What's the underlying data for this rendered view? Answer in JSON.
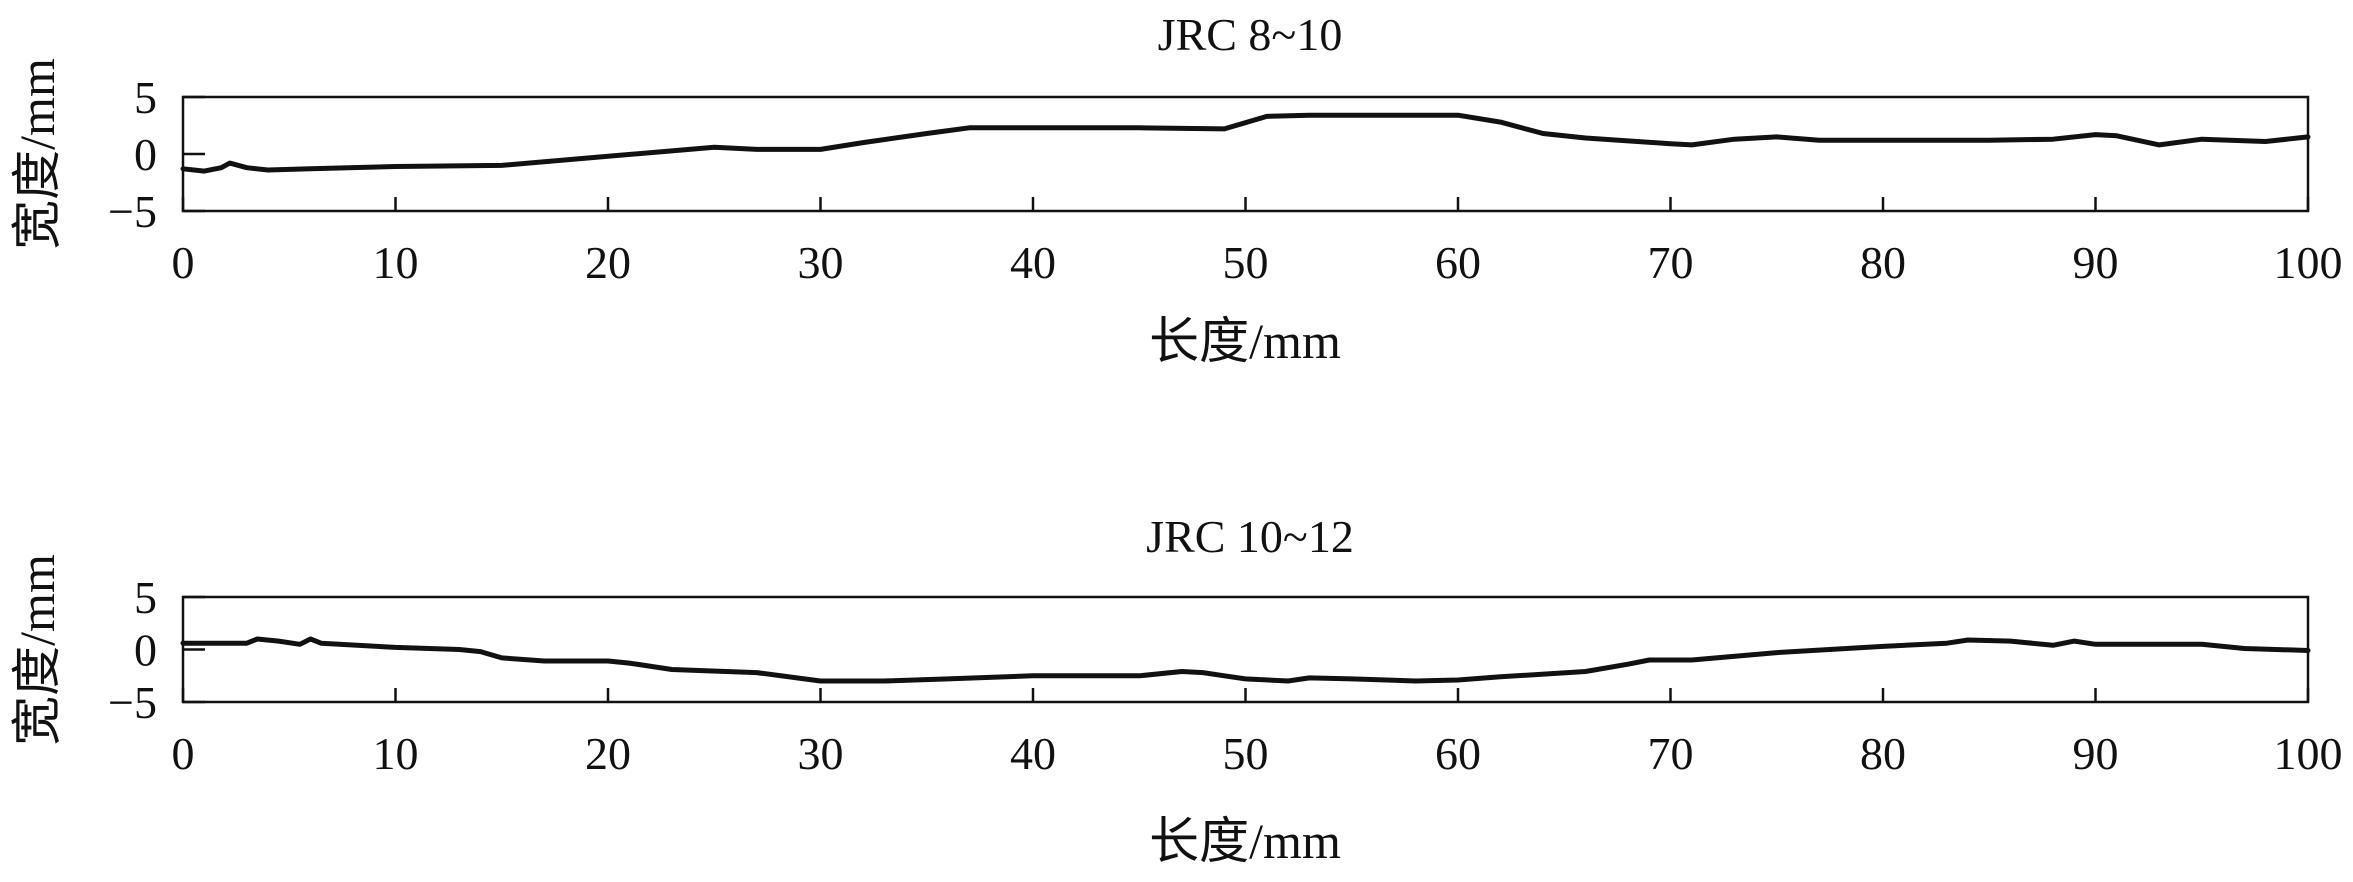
{
  "chart_data": [
    {
      "type": "line",
      "title": "JRC 8~10",
      "xlabel": "长度/mm",
      "ylabel": "宽度/mm",
      "xlim": [
        0,
        100
      ],
      "ylim": [
        -5,
        5
      ],
      "xticks": [
        "0",
        "10",
        "20",
        "30",
        "40",
        "50",
        "60",
        "70",
        "80",
        "90",
        "100"
      ],
      "yticks": [
        "5",
        "0",
        "-5"
      ],
      "grid": false,
      "x": [
        0,
        1,
        1.8,
        2.2,
        3,
        4,
        6,
        10,
        15,
        20,
        25,
        27,
        30,
        32,
        35,
        37,
        40,
        45,
        49,
        51,
        53,
        57,
        60,
        62,
        64,
        66,
        70,
        71,
        73,
        75,
        77,
        80,
        85,
        88,
        90,
        91,
        93,
        95,
        98,
        100
      ],
      "series": [
        {
          "values": [
            -1.3,
            -1.5,
            -1.2,
            -0.8,
            -1.2,
            -1.4,
            -1.3,
            -1.1,
            -1.0,
            -0.2,
            0.6,
            0.4,
            0.4,
            1.0,
            1.8,
            2.3,
            2.3,
            2.3,
            2.2,
            3.3,
            3.4,
            3.4,
            3.4,
            2.8,
            1.8,
            1.4,
            0.9,
            0.8,
            1.3,
            1.5,
            1.2,
            1.2,
            1.2,
            1.3,
            1.7,
            1.6,
            0.8,
            1.3,
            1.1,
            1.5
          ]
        }
      ]
    },
    {
      "type": "line",
      "title": "JRC 10~12",
      "xlabel": "长度/mm",
      "ylabel": "宽度/mm",
      "xlim": [
        0,
        100
      ],
      "ylim": [
        -5,
        5
      ],
      "xticks": [
        "0",
        "10",
        "20",
        "30",
        "40",
        "50",
        "60",
        "70",
        "80",
        "90",
        "100"
      ],
      "yticks": [
        "5",
        "0",
        "-5"
      ],
      "grid": false,
      "x": [
        0,
        3,
        3.5,
        4.5,
        5.5,
        6,
        6.5,
        10,
        13,
        14,
        15,
        17,
        20,
        21,
        23,
        27,
        30,
        33,
        36,
        40,
        45,
        47,
        48,
        49,
        50,
        52,
        53,
        55,
        58,
        60,
        62,
        66,
        68,
        69,
        71,
        75,
        80,
        83,
        84,
        86,
        88,
        89,
        90,
        95,
        97,
        100
      ],
      "series": [
        {
          "values": [
            0.6,
            0.6,
            1.0,
            0.8,
            0.5,
            1.0,
            0.6,
            0.2,
            0.0,
            -0.2,
            -0.8,
            -1.1,
            -1.1,
            -1.3,
            -1.9,
            -2.2,
            -3.0,
            -3.0,
            -2.8,
            -2.5,
            -2.5,
            -2.1,
            -2.2,
            -2.5,
            -2.8,
            -3.0,
            -2.7,
            -2.8,
            -3.0,
            -2.9,
            -2.6,
            -2.1,
            -1.4,
            -1.0,
            -1.0,
            -0.3,
            0.3,
            0.6,
            0.9,
            0.8,
            0.4,
            0.8,
            0.5,
            0.5,
            0.1,
            -0.1
          ]
        }
      ]
    }
  ]
}
